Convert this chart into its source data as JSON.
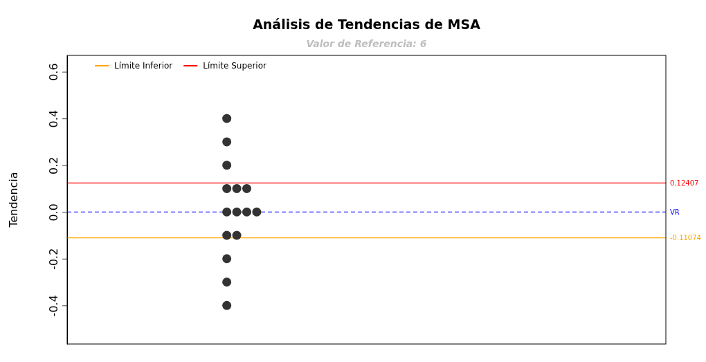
{
  "chart_data": {
    "type": "scatter",
    "title": "Análisis de Tendencias de MSA",
    "subtitle": "Valor de Referencia: 6",
    "ylabel": "Tendencia",
    "categories": [
      null,
      null,
      null,
      null,
      null,
      null,
      null,
      null,
      null,
      null,
      null,
      null,
      null,
      null,
      null,
      null,
      null,
      null,
      null,
      null,
      null,
      null,
      null,
      null,
      null,
      null,
      null,
      null,
      null,
      null,
      null,
      null,
      null,
      null,
      null,
      null,
      null,
      null,
      null,
      null,
      null,
      null,
      null,
      null,
      null,
      null,
      null,
      null,
      null,
      null,
      null,
      null,
      null,
      null,
      null,
      null,
      null,
      null,
      null,
      null,
      null
    ],
    "series": [
      {
        "type": "line",
        "name": "Límite Inferior",
        "color": "#ffa500",
        "marker": "none",
        "values": [
          -0.11074,
          -0.11074,
          -0.11074,
          -0.11074,
          -0.11074,
          -0.11074,
          -0.11074,
          -0.11074,
          -0.11074,
          -0.11074,
          -0.11074,
          -0.11074,
          -0.11074,
          -0.11074,
          -0.11074,
          -0.11074,
          -0.11074,
          -0.11074,
          -0.11074,
          -0.11074,
          -0.11074,
          -0.11074,
          -0.11074,
          -0.11074,
          -0.11074,
          -0.11074,
          -0.11074,
          -0.11074,
          -0.11074,
          -0.11074,
          -0.11074,
          -0.11074,
          -0.11074,
          -0.11074,
          -0.11074,
          -0.11074,
          -0.11074,
          -0.11074,
          -0.11074,
          -0.11074,
          -0.11074,
          -0.11074,
          -0.11074,
          -0.11074,
          -0.11074,
          -0.11074,
          -0.11074,
          -0.11074,
          -0.11074,
          -0.11074,
          -0.11074,
          -0.11074,
          -0.11074,
          -0.11074,
          -0.11074,
          -0.11074,
          -0.11074,
          -0.11074,
          -0.11074,
          -0.11074,
          -0.11074
        ],
        "value_labels": [
          null,
          null,
          null,
          null,
          null,
          null,
          null,
          null,
          null,
          null,
          null,
          null,
          null,
          null,
          null,
          null,
          null,
          null,
          null,
          null,
          null,
          null,
          null,
          null,
          null,
          null,
          null,
          null,
          null,
          null,
          null,
          null,
          null,
          null,
          null,
          null,
          null,
          null,
          null,
          null,
          null,
          null,
          null,
          null,
          null,
          null,
          null,
          null,
          null,
          null,
          null,
          null,
          null,
          null,
          null,
          null,
          null,
          null,
          null,
          null,
          "-0.11074"
        ]
      },
      {
        "type": "line",
        "name": "Límite Superior",
        "color": "#ff0000",
        "marker": "none",
        "values": [
          0.12407,
          0.12407,
          0.12407,
          0.12407,
          0.12407,
          0.12407,
          0.12407,
          0.12407,
          0.12407,
          0.12407,
          0.12407,
          0.12407,
          0.12407,
          0.12407,
          0.12407,
          0.12407,
          0.12407,
          0.12407,
          0.12407,
          0.12407,
          0.12407,
          0.12407,
          0.12407,
          0.12407,
          0.12407,
          0.12407,
          0.12407,
          0.12407,
          0.12407,
          0.12407,
          0.12407,
          0.12407,
          0.12407,
          0.12407,
          0.12407,
          0.12407,
          0.12407,
          0.12407,
          0.12407,
          0.12407,
          0.12407,
          0.12407,
          0.12407,
          0.12407,
          0.12407,
          0.12407,
          0.12407,
          0.12407,
          0.12407,
          0.12407,
          0.12407,
          0.12407,
          0.12407,
          0.12407,
          0.12407,
          0.12407,
          0.12407,
          0.12407,
          0.12407,
          0.12407,
          0.12407
        ],
        "value_labels": [
          null,
          null,
          null,
          null,
          null,
          null,
          null,
          null,
          null,
          null,
          null,
          null,
          null,
          null,
          null,
          null,
          null,
          null,
          null,
          null,
          null,
          null,
          null,
          null,
          null,
          null,
          null,
          null,
          null,
          null,
          null,
          null,
          null,
          null,
          null,
          null,
          null,
          null,
          null,
          null,
          null,
          null,
          null,
          null,
          null,
          null,
          null,
          null,
          null,
          null,
          null,
          null,
          null,
          null,
          null,
          null,
          null,
          null,
          null,
          null,
          "0.12407"
        ]
      },
      {
        "color": "#333333",
        "values": [
          null,
          null,
          null,
          null,
          null,
          null,
          null,
          null,
          null,
          null,
          null,
          null,
          null,
          null,
          null,
          null,
          0.4,
          null,
          null,
          null,
          null,
          null,
          null,
          null,
          null,
          null,
          null,
          null,
          null,
          null,
          null,
          null,
          null,
          null,
          null,
          null,
          null,
          null,
          null,
          null,
          null,
          null,
          null,
          null,
          null,
          null,
          null,
          null,
          null,
          null,
          null,
          null,
          null,
          null,
          null,
          null,
          null,
          null,
          null,
          null,
          null
        ]
      },
      {
        "color": "#333333",
        "values": [
          null,
          null,
          null,
          null,
          null,
          null,
          null,
          null,
          null,
          null,
          null,
          null,
          null,
          null,
          null,
          null,
          0.3,
          null,
          null,
          null,
          null,
          null,
          null,
          null,
          null,
          null,
          null,
          null,
          null,
          null,
          null,
          null,
          null,
          null,
          null,
          null,
          null,
          null,
          null,
          null,
          null,
          null,
          null,
          null,
          null,
          null,
          null,
          null,
          null,
          null,
          null,
          null,
          null,
          null,
          null,
          null,
          null,
          null,
          null,
          null,
          null
        ]
      },
      {
        "color": "#333333",
        "values": [
          null,
          null,
          null,
          null,
          null,
          null,
          null,
          null,
          null,
          null,
          null,
          null,
          null,
          null,
          null,
          null,
          0.2,
          null,
          null,
          null,
          null,
          null,
          null,
          null,
          null,
          null,
          null,
          null,
          null,
          null,
          null,
          null,
          null,
          null,
          null,
          null,
          null,
          null,
          null,
          null,
          null,
          null,
          null,
          null,
          null,
          null,
          null,
          null,
          null,
          null,
          null,
          null,
          null,
          null,
          null,
          null,
          null,
          null,
          null,
          null,
          null
        ]
      },
      {
        "color": "#333333",
        "values": [
          null,
          null,
          null,
          null,
          null,
          null,
          null,
          null,
          null,
          null,
          null,
          null,
          null,
          null,
          null,
          null,
          0.1,
          0.1,
          0.1,
          null,
          null,
          null,
          null,
          null,
          null,
          null,
          null,
          null,
          null,
          null,
          null,
          null,
          null,
          null,
          null,
          null,
          null,
          null,
          null,
          null,
          null,
          null,
          null,
          null,
          null,
          null,
          null,
          null,
          null,
          null,
          null,
          null,
          null,
          null,
          null,
          null,
          null,
          null,
          null,
          null,
          null
        ]
      },
      {
        "color": "#333333",
        "values": [
          null,
          null,
          null,
          null,
          null,
          null,
          null,
          null,
          null,
          null,
          null,
          null,
          null,
          null,
          null,
          null,
          0,
          0,
          0,
          0,
          null,
          null,
          null,
          null,
          null,
          null,
          null,
          null,
          null,
          null,
          null,
          null,
          null,
          null,
          null,
          null,
          null,
          null,
          null,
          null,
          null,
          null,
          null,
          null,
          null,
          null,
          null,
          null,
          null,
          null,
          null,
          null,
          null,
          null,
          null,
          null,
          null,
          null,
          null,
          null,
          null
        ]
      },
      {
        "color": "#333333",
        "values": [
          null,
          null,
          null,
          null,
          null,
          null,
          null,
          null,
          null,
          null,
          null,
          null,
          null,
          null,
          null,
          null,
          -0.1,
          -0.1,
          null,
          null,
          null,
          null,
          null,
          null,
          null,
          null,
          null,
          null,
          null,
          null,
          null,
          null,
          null,
          null,
          null,
          null,
          null,
          null,
          null,
          null,
          null,
          null,
          null,
          null,
          null,
          null,
          null,
          null,
          null,
          null,
          null,
          null,
          null,
          null,
          null,
          null,
          null,
          null,
          null,
          null,
          null
        ]
      },
      {
        "color": "#333333",
        "values": [
          null,
          null,
          null,
          null,
          null,
          null,
          null,
          null,
          null,
          null,
          null,
          null,
          null,
          null,
          null,
          null,
          -0.2,
          null,
          null,
          null,
          null,
          null,
          null,
          null,
          null,
          null,
          null,
          null,
          null,
          null,
          null,
          null,
          null,
          null,
          null,
          null,
          null,
          null,
          null,
          null,
          null,
          null,
          null,
          null,
          null,
          null,
          null,
          null,
          null,
          null,
          null,
          null,
          null,
          null,
          null,
          null,
          null,
          null,
          null,
          null,
          null
        ]
      },
      {
        "color": "#333333",
        "values": [
          null,
          null,
          null,
          null,
          null,
          null,
          null,
          null,
          null,
          null,
          null,
          null,
          null,
          null,
          null,
          null,
          -0.3,
          null,
          null,
          null,
          null,
          null,
          null,
          null,
          null,
          null,
          null,
          null,
          null,
          null,
          null,
          null,
          null,
          null,
          null,
          null,
          null,
          null,
          null,
          null,
          null,
          null,
          null,
          null,
          null,
          null,
          null,
          null,
          null,
          null,
          null,
          null,
          null,
          null,
          null,
          null,
          null,
          null,
          null,
          null,
          null
        ]
      },
      {
        "color": "#333333",
        "values": [
          null,
          null,
          null,
          null,
          null,
          null,
          null,
          null,
          null,
          null,
          null,
          null,
          null,
          null,
          null,
          null,
          -0.4,
          null,
          null,
          null,
          null,
          null,
          null,
          null,
          null,
          null,
          null,
          null,
          null,
          null,
          null,
          null,
          null,
          null,
          null,
          null,
          null,
          null,
          null,
          null,
          null,
          null,
          null,
          null,
          null,
          null,
          null,
          null,
          null,
          null,
          null,
          null,
          null,
          null,
          null,
          null,
          null,
          null,
          null,
          null,
          null
        ]
      }
    ],
    "ylim": [
      -0.565,
      0.67
    ],
    "yticks": [
      -0.4,
      -0.2,
      {
        "value": 0,
        "label": "0.0"
      },
      0.2,
      0.4,
      0.6
    ],
    "marker": "circle",
    "legend": "top left",
    "ref_lines": [
      {
        "axis": "y",
        "value": 0,
        "label": "VR",
        "color": "#0000ff",
        "line_style": "dashed"
      }
    ]
  }
}
